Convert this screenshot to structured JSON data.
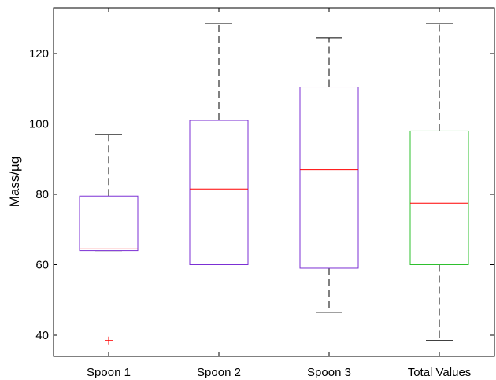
{
  "chart_data": {
    "type": "box",
    "ylabel": "Mass/µg",
    "ylim": [
      34,
      133
    ],
    "yticks": [
      40,
      60,
      80,
      100,
      120
    ],
    "categories": [
      "Spoon 1",
      "Spoon 2",
      "Spoon 3",
      "Total Values"
    ],
    "boxes": [
      {
        "category": "Spoon 1",
        "min": 64,
        "q1": 64,
        "median": 64.5,
        "q3": 79.5,
        "max": 97,
        "outliers": [
          38.5
        ],
        "color": "#7b2fd4"
      },
      {
        "category": "Spoon 2",
        "min": 60,
        "q1": 60,
        "median": 81.5,
        "q3": 101,
        "max": 128.5,
        "outliers": [],
        "color": "#7b2fd4"
      },
      {
        "category": "Spoon 3",
        "min": 46.5,
        "q1": 59,
        "median": 87,
        "q3": 110.5,
        "max": 124.5,
        "outliers": [],
        "color": "#7b2fd4"
      },
      {
        "category": "Total Values",
        "min": 38.5,
        "q1": 60,
        "median": 77.5,
        "q3": 98,
        "max": 128.5,
        "outliers": [],
        "color": "#2ec02e"
      }
    ],
    "median_color": "#ff0000",
    "outlier_color": "#ff0000",
    "grid": false
  }
}
